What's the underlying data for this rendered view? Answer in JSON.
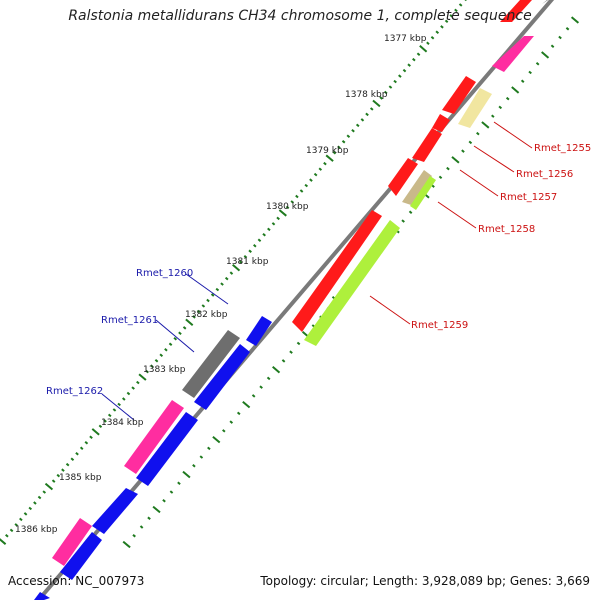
{
  "title": "Ralstonia metallidurans CH34 chromosome 1, complete sequence",
  "footer": {
    "accession": "Accession: NC_007973",
    "topology": "Topology: circular; Length: 3,928,089 bp; Genes: 3,669"
  },
  "colors": {
    "backbone": "#7a7a7a",
    "tick": "#1f7a1f",
    "label_red": "#cc1111",
    "label_blue": "#1a1aaa",
    "red": "#ff1a1a",
    "blue": "#1010ee",
    "gray": "#6e6e6e",
    "pink": "#ff2da0",
    "lime": "#aef03c",
    "khaki": "#c9b98a",
    "pale_yellow": "#f1e6a0"
  },
  "kbp_labels": [
    "1377 kbp",
    "1378 kbp",
    "1379 kbp",
    "1380 kbp",
    "1381 kbp",
    "1382 kbp",
    "1383 kbp",
    "1384 kbp",
    "1385 kbp",
    "1386 kbp"
  ],
  "gene_labels_right": [
    "Rmet_1255",
    "Rmet_1256",
    "Rmet_1257",
    "Rmet_1258",
    "Rmet_1259"
  ],
  "gene_labels_left": [
    "Rmet_1260",
    "Rmet_1261",
    "Rmet_1262"
  ]
}
